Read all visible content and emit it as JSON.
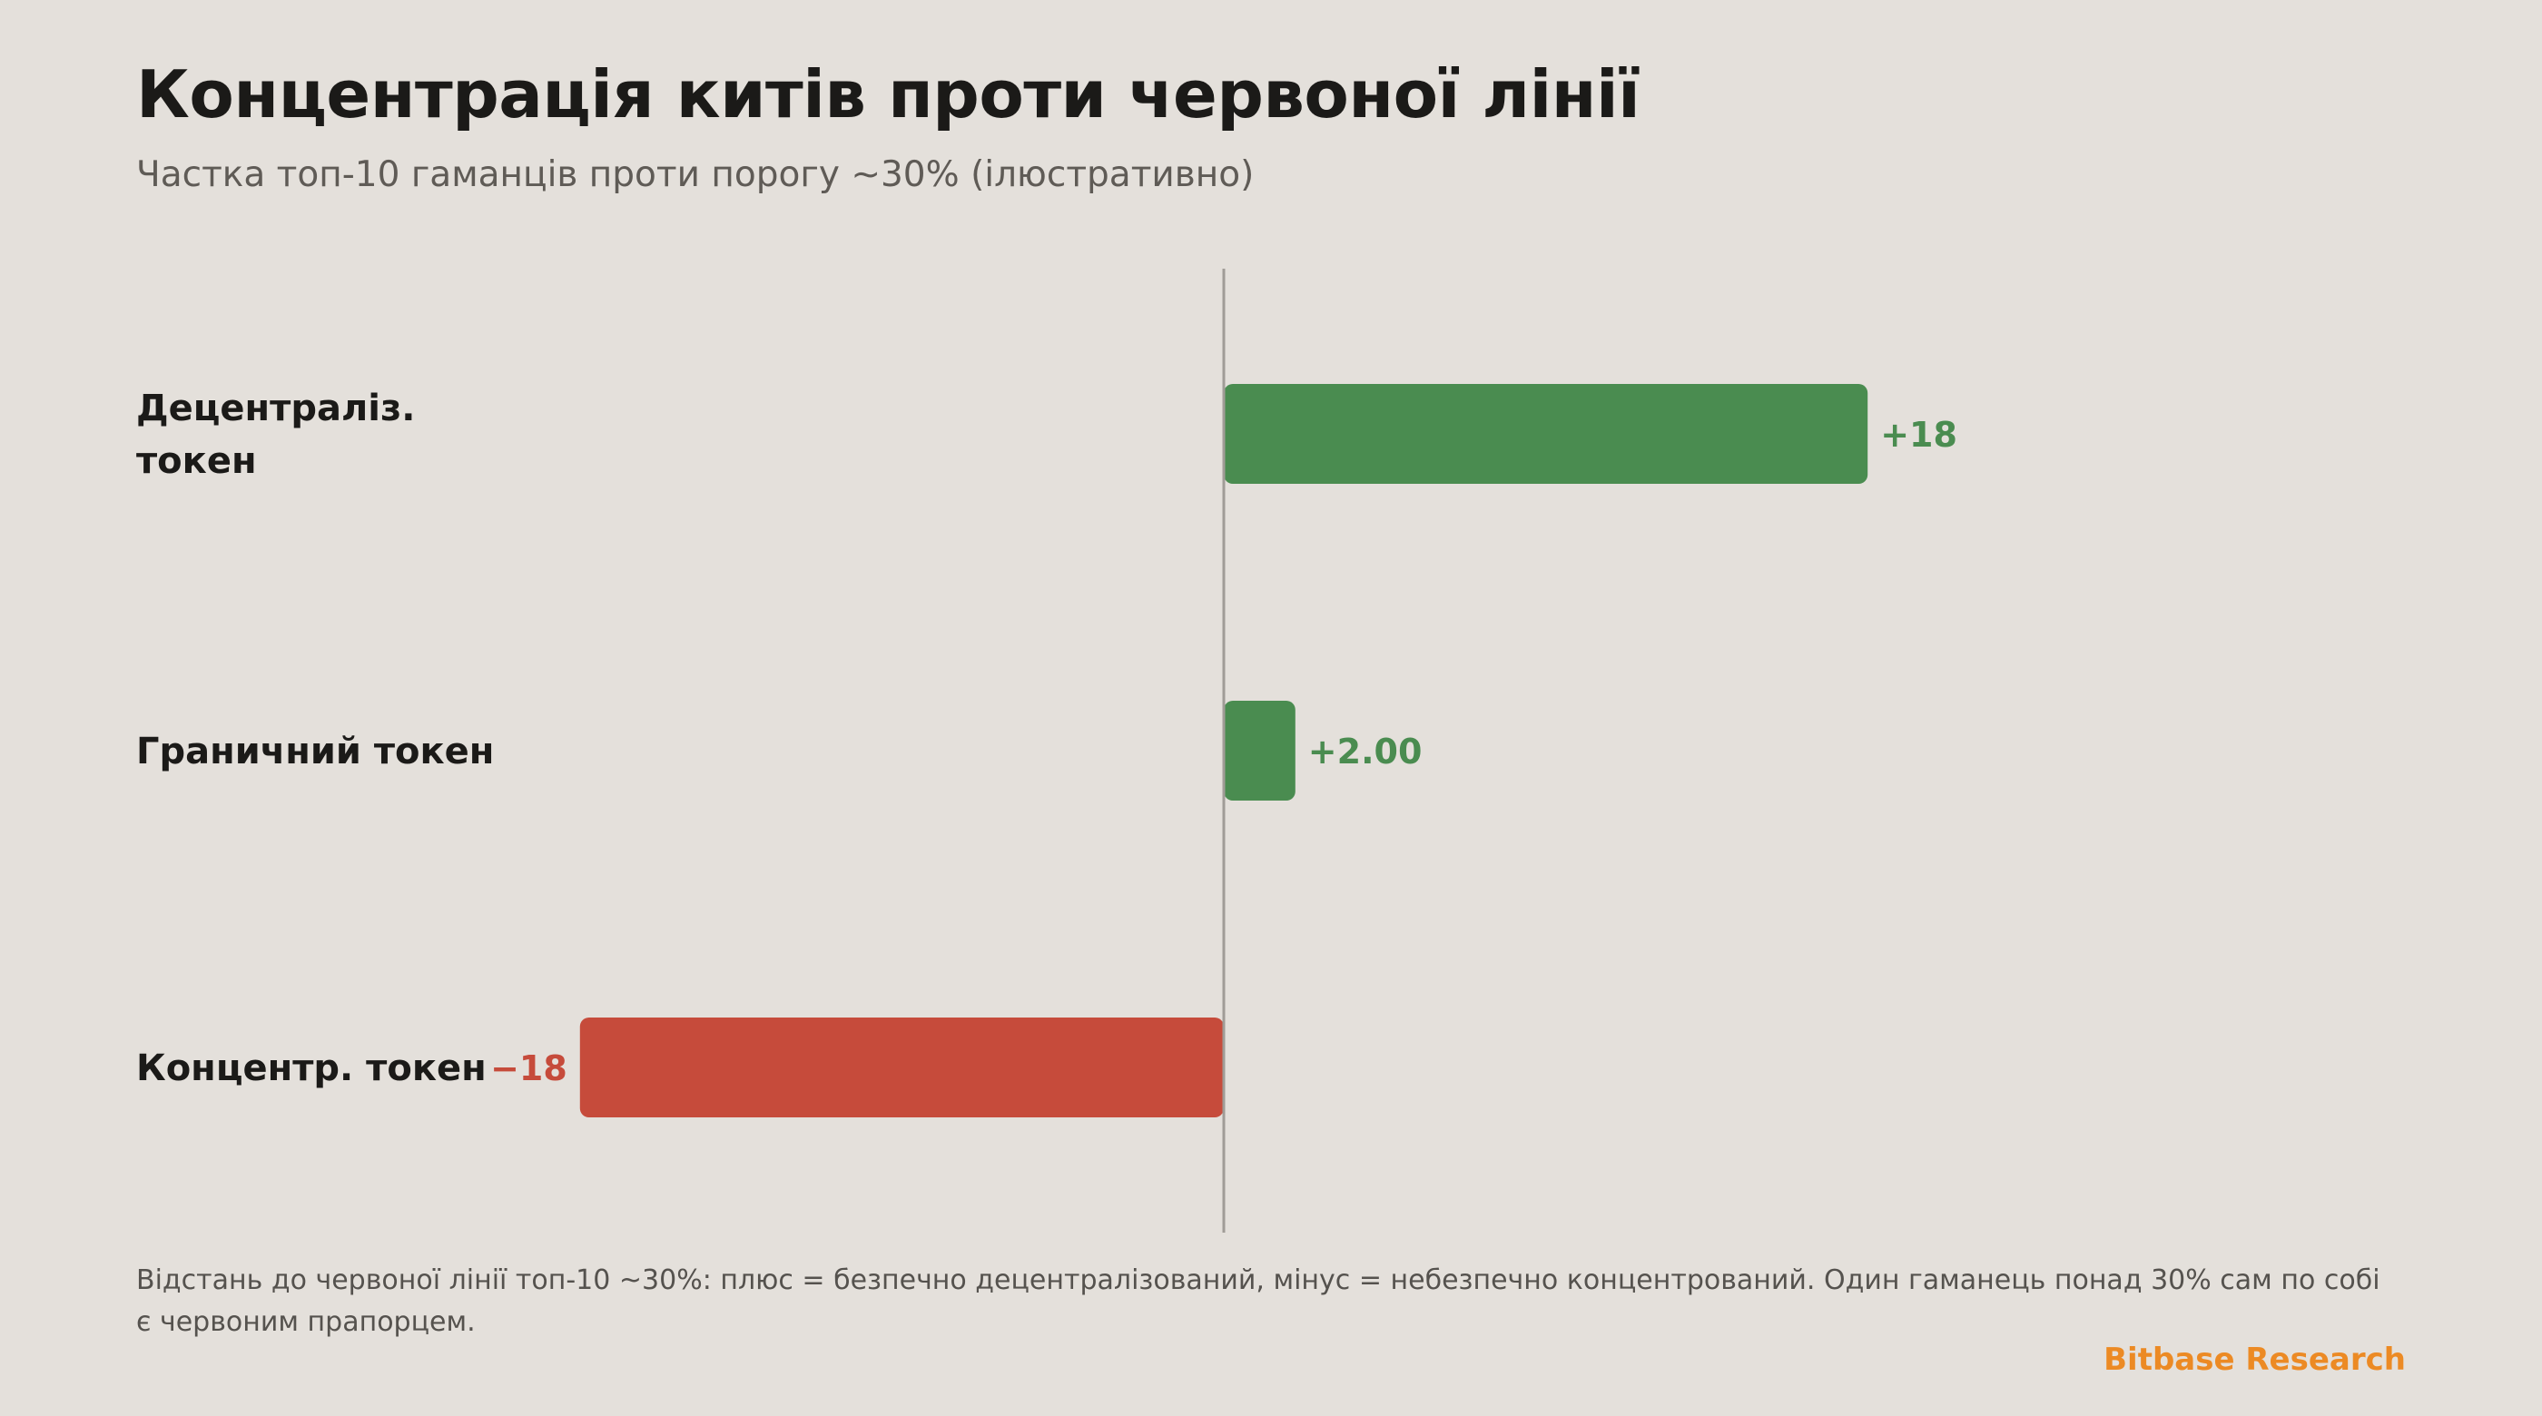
{
  "colors": {
    "positive": "#4a8c50",
    "negative": "#c64b3b",
    "axis": "#a09c97",
    "label": "#1b1a18",
    "brand": "#ec8a24"
  },
  "header": {
    "title": "Концентрація китів проти червоної лінії",
    "subtitle": "Частка топ-10 гаманців проти порогу ~30% (ілюстративно)"
  },
  "footer": {
    "note": "Відстань до червоної лінії топ-10 ~30%: плюс = безпечно децентралізований, мінус = небезпечно концентрований. Один гаманець понад 30% сам по собі є червоним прапорцем.",
    "brand": "Bitbase Research"
  },
  "chart_data": {
    "type": "bar",
    "orientation": "horizontal",
    "categories": [
      [
        "Децентраліз.",
        "токен"
      ],
      [
        "Граничний токен"
      ],
      [
        "Концентр. токен"
      ]
    ],
    "values": [
      18,
      2,
      -18
    ],
    "value_labels": [
      "+18",
      "+2.00",
      "−18"
    ],
    "xlim": [
      -18,
      18
    ],
    "baseline": 0,
    "grid": false,
    "legend": "none"
  }
}
